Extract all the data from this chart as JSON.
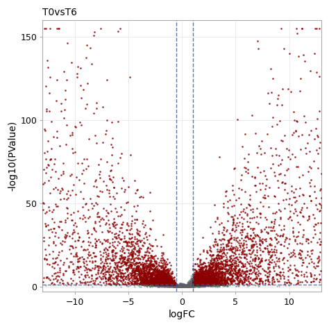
{
  "title": "T0vsT6",
  "xlabel": "logFC",
  "ylabel": "-log10(PValue)",
  "xlim": [
    -13,
    13
  ],
  "ylim": [
    -3,
    160
  ],
  "yticks": [
    0,
    50,
    100,
    150
  ],
  "xticks": [
    -10,
    -5,
    0,
    5,
    10
  ],
  "hline_y": 1.3,
  "vline_x1": -0.5,
  "vline_x2": 1.0,
  "dashed_color": "#4a5a8a",
  "dot_color_sig": "#8b0000",
  "dot_color_nonsig": "#606060",
  "background_color": "#ffffff",
  "grid_color": "#e8e8e8",
  "n_points": 12000,
  "seed": 99
}
